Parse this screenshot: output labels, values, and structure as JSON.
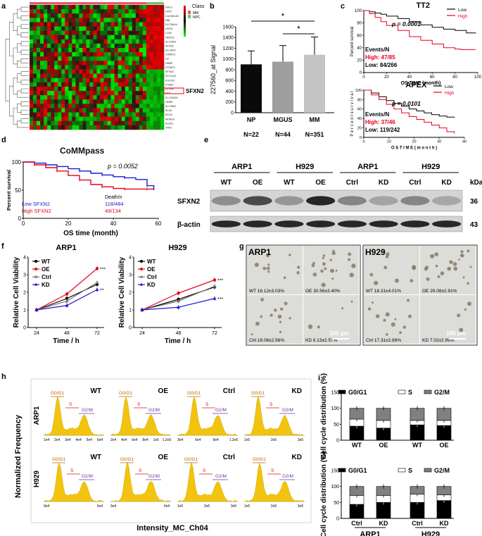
{
  "panel_labels": {
    "a": "a",
    "b": "b",
    "c": "c",
    "d": "d",
    "e": "e",
    "f": "f",
    "g": "g",
    "h": "h",
    "i": "i"
  },
  "panel_a": {
    "legend_title": "Class",
    "legend_items": [
      {
        "label": "MM",
        "color": "#e8566a"
      },
      {
        "label": "NPC",
        "color": "#63c86b"
      }
    ],
    "highlight_gene": "SFXN2",
    "gene_labels": [
      "HIF1a",
      "LRP2",
      "CACNA1AC",
      "MBL",
      "SLC39A14",
      "UROD",
      "LCN2",
      "HMOX1",
      "SLC40A1",
      "SFXN3",
      "SLC40A7",
      "CAMK12",
      "CP",
      "HAMP",
      "STEAP3",
      "SFXN2",
      "SLC11A2",
      "FLVCR1",
      "FXEB3",
      "SFXN4",
      "MT1",
      "SLC25A28",
      "HMBS",
      "SLC48A1",
      "ALAD",
      "ISCA1",
      "MON1A",
      "ALAS1",
      "TFRC"
    ]
  },
  "panel_b": {
    "chart_data": {
      "type": "bar",
      "ylabel": "227560_at Signal",
      "ylim": [
        0,
        1600
      ],
      "yticks": [
        0,
        200,
        400,
        600,
        800,
        1000,
        1200,
        1400,
        1600
      ],
      "categories": [
        "NP",
        "MGUS",
        "MM"
      ],
      "values": [
        900,
        950,
        1080
      ],
      "errors": [
        250,
        300,
        330
      ],
      "colors": [
        "#0a0a0a",
        "#9e9e9e",
        "#c4c4c4"
      ],
      "n_labels": [
        "N=22",
        "N=44",
        "N=351"
      ],
      "significance": [
        "*",
        "*"
      ]
    }
  },
  "panel_c1": {
    "chart_data": {
      "type": "line",
      "title": "TT2",
      "xlabel": "OS TIME (month)",
      "ylabel": "Percent survival",
      "xlim": [
        0,
        100
      ],
      "ylim": [
        0,
        100
      ],
      "xticks": [
        0,
        20,
        40,
        60,
        80,
        100
      ],
      "yticks": [
        0,
        20,
        40,
        60,
        80,
        100
      ],
      "series": [
        {
          "name": "Low",
          "color": "#000000",
          "x": [
            0,
            5,
            10,
            15,
            20,
            30,
            40,
            50,
            60,
            70,
            80,
            90,
            98
          ],
          "y": [
            100,
            98,
            96,
            94,
            91,
            87,
            82,
            77,
            73,
            70,
            68,
            64,
            63
          ]
        },
        {
          "name": "High",
          "color": "#e8001c",
          "x": [
            0,
            5,
            10,
            15,
            20,
            30,
            40,
            50,
            60,
            70,
            80,
            85,
            98
          ],
          "y": [
            100,
            95,
            89,
            82,
            76,
            68,
            58,
            52,
            46,
            40,
            38,
            37,
            37
          ]
        }
      ],
      "pvalue": "p = 0.0001",
      "events_header": "Events/N",
      "events_high": "High: 47/85",
      "events_low": "Low: 84/266"
    }
  },
  "panel_c2": {
    "chart_data": {
      "type": "line",
      "title": "APEX",
      "xlabel": "O S  T I M E  ( m o n t h )",
      "ylabel": "P e r c e n t  s u r v i v a l",
      "xlim": [
        0,
        40
      ],
      "ylim": [
        0,
        100
      ],
      "xticks": [
        0,
        10,
        20,
        30,
        40
      ],
      "yticks": [
        0,
        20,
        40,
        60,
        80,
        100
      ],
      "series": [
        {
          "name": "Low",
          "color": "#000000",
          "x": [
            0,
            3,
            6,
            9,
            12,
            15,
            18,
            21,
            24,
            27,
            30,
            33,
            36
          ],
          "y": [
            100,
            94,
            86,
            78,
            72,
            66,
            60,
            56,
            52,
            48,
            45,
            43,
            42
          ]
        },
        {
          "name": "High",
          "color": "#e8001c",
          "x": [
            0,
            3,
            6,
            9,
            12,
            15,
            18,
            21,
            24,
            27,
            30,
            33,
            36
          ],
          "y": [
            100,
            90,
            80,
            70,
            60,
            52,
            44,
            38,
            32,
            26,
            20,
            12,
            8
          ]
        }
      ],
      "pvalue": "p = 0.0101",
      "events_header": "Events/N",
      "events_high": "High: 37/46",
      "events_low": "Low: 119/242"
    }
  },
  "panel_d": {
    "chart_data": {
      "type": "line",
      "title": "CoMMpass",
      "xlabel": "OS time (month)",
      "ylabel": "Percent survival",
      "xlim": [
        0,
        60
      ],
      "ylim": [
        0,
        100
      ],
      "xticks": [
        0,
        20,
        40,
        60
      ],
      "yticks": [
        0,
        50,
        100
      ],
      "series": [
        {
          "name": "Low SFXN2",
          "color": "#1a1ad6",
          "x": [
            0,
            5,
            10,
            15,
            20,
            25,
            30,
            35,
            40,
            45,
            50,
            55,
            58
          ],
          "y": [
            100,
            98,
            95,
            92,
            88,
            84,
            80,
            77,
            74,
            72,
            69,
            58,
            50
          ]
        },
        {
          "name": "High SFXN2",
          "color": "#e8001c",
          "x": [
            0,
            5,
            10,
            15,
            20,
            25,
            30,
            35,
            40,
            45,
            50,
            55,
            58
          ],
          "y": [
            100,
            95,
            90,
            84,
            76,
            68,
            60,
            56,
            53,
            52,
            52,
            52,
            52
          ]
        }
      ],
      "pvalue": "p = 0.0052",
      "death_header": "Death/n",
      "low_label": "Low SFXN2",
      "low_value": "118/484",
      "high_label": "High SFXN2",
      "high_value": "49/134"
    }
  },
  "panel_e": {
    "groups": [
      "ARP1",
      "H929",
      "ARP1",
      "H929"
    ],
    "lanes": [
      "WT",
      "OE",
      "WT",
      "OE",
      "Ctrl",
      "KD",
      "Ctrl",
      "KD"
    ],
    "unit": "kDa",
    "rows": [
      {
        "label": "SFXN2",
        "kda": "36",
        "intensity": [
          0.35,
          0.75,
          0.3,
          0.95,
          0.4,
          0.22,
          0.4,
          0.2
        ]
      },
      {
        "label": "β-actin",
        "kda": "43",
        "intensity": [
          0.95,
          0.95,
          0.95,
          0.95,
          0.95,
          0.95,
          0.95,
          0.95
        ]
      }
    ]
  },
  "panel_f1": {
    "chart_data": {
      "type": "line",
      "title": "ARP1",
      "xlabel": "Time / h",
      "ylabel": "Relative Cell Viability",
      "categories": [
        "24",
        "48",
        "72"
      ],
      "ylim": [
        0,
        4
      ],
      "yticks": [
        0,
        1,
        2,
        3,
        4
      ],
      "series": [
        {
          "name": "WT",
          "color": "#000000",
          "marker": "circle",
          "values": [
            1.0,
            1.65,
            2.45
          ],
          "sig": ""
        },
        {
          "name": "OE",
          "color": "#e8001c",
          "marker": "circle",
          "values": [
            1.0,
            1.9,
            3.35
          ],
          "sig": "***"
        },
        {
          "name": "Ctrl",
          "color": "#777777",
          "marker": "triangle",
          "values": [
            1.0,
            1.5,
            2.55
          ],
          "sig": ""
        },
        {
          "name": "KD",
          "color": "#1a1ad6",
          "marker": "triangle",
          "values": [
            1.0,
            1.25,
            2.15
          ],
          "sig": "**"
        }
      ]
    }
  },
  "panel_f2": {
    "chart_data": {
      "type": "line",
      "title": "H929",
      "xlabel": "Time / h",
      "ylabel": "Relative Cell Viability",
      "categories": [
        "24",
        "48",
        "72"
      ],
      "ylim": [
        0,
        4
      ],
      "yticks": [
        0,
        1,
        2,
        3,
        4
      ],
      "series": [
        {
          "name": "WT",
          "color": "#000000",
          "marker": "circle",
          "values": [
            1.0,
            1.6,
            2.3
          ],
          "sig": ""
        },
        {
          "name": "OE",
          "color": "#e8001c",
          "marker": "circle",
          "values": [
            1.0,
            1.95,
            2.7
          ],
          "sig": "***"
        },
        {
          "name": "Ctrl",
          "color": "#777777",
          "marker": "triangle",
          "values": [
            1.0,
            1.5,
            2.35
          ],
          "sig": ""
        },
        {
          "name": "KD",
          "color": "#1a1ad6",
          "marker": "triangle",
          "values": [
            1.0,
            1.15,
            1.65
          ],
          "sig": "***"
        }
      ]
    }
  },
  "panel_g": {
    "cells": [
      "ARP1",
      "H929"
    ],
    "scale": "100 μm",
    "tiles": [
      {
        "label": "WT 16.12±3.03%"
      },
      {
        "label": "OE 30.56±3.40%"
      },
      {
        "label": "Ctrl 18.06±2.56%"
      },
      {
        "label": "KD 6.13±2.57%"
      },
      {
        "label": "WT 18.31±4.01%"
      },
      {
        "label": "OE 29.08±2.91%"
      },
      {
        "label": "Ctrl 17.31±2.89%"
      },
      {
        "label": "KD 7.02±2.99%"
      }
    ]
  },
  "panel_h": {
    "ylabel": "Normalized Frequency",
    "xlabel": "Intensity_MC_Ch04",
    "row_labels": [
      "ARP1",
      "H929"
    ],
    "phase_labels": [
      "G0/G1",
      "S",
      "G2/M"
    ],
    "histograms": [
      {
        "title": "WT",
        "ticks": [
          "1e4",
          "2e4",
          "3e4",
          "4e4",
          "5e4",
          "6e4"
        ]
      },
      {
        "title": "OE",
        "ticks": [
          "2e4",
          "4e4",
          "6e4",
          "8e4",
          "1e5",
          "1.2e5"
        ]
      },
      {
        "title": "Ctrl",
        "ticks": [
          "3e4",
          "6e4",
          "9e4",
          "1.2e5"
        ]
      },
      {
        "title": "KD",
        "ticks": [
          "1e5",
          "2e5",
          "3e5"
        ]
      },
      {
        "title": "WT",
        "ticks": [
          "3e4",
          "6e4"
        ]
      },
      {
        "title": "OE",
        "ticks": [
          "3e4",
          "6e4"
        ]
      },
      {
        "title": "Ctrl",
        "ticks": [
          "1e5",
          "2e5",
          "3e5"
        ]
      },
      {
        "title": "KD",
        "ticks": [
          "1e5",
          "2e5",
          "3e5"
        ]
      }
    ]
  },
  "panel_i1": {
    "chart_data": {
      "type": "bar",
      "stacked": true,
      "ylabel": "Cell cycle distribution (%)",
      "ylim": [
        0,
        150
      ],
      "yticks": [
        0,
        50,
        100,
        150
      ],
      "legend": [
        "G0/G1",
        "S",
        "G2/M"
      ],
      "colors": [
        "#000000",
        "#ffffff",
        "#808080"
      ],
      "categories": [
        "WT",
        "OE",
        "WT",
        "OE"
      ],
      "series": [
        {
          "name": "G0/G1",
          "values": [
            44,
            38,
            48,
            46
          ]
        },
        {
          "name": "S",
          "values": [
            22,
            24,
            14,
            16
          ]
        },
        {
          "name": "G2/M",
          "values": [
            34,
            38,
            38,
            38
          ]
        }
      ]
    }
  },
  "panel_i2": {
    "chart_data": {
      "type": "bar",
      "stacked": true,
      "ylabel": "Cell cycle distribution (%)",
      "ylim": [
        0,
        150
      ],
      "yticks": [
        0,
        50,
        100,
        150
      ],
      "legend": [
        "G0/G1",
        "S",
        "G2/M"
      ],
      "colors": [
        "#000000",
        "#ffffff",
        "#808080"
      ],
      "categories": [
        "Ctrl",
        "KD",
        "Ctrl",
        "KD"
      ],
      "groups": [
        "ARP1",
        "H929"
      ],
      "series": [
        {
          "name": "G0/G1",
          "values": [
            44,
            50,
            50,
            56
          ]
        },
        {
          "name": "S",
          "values": [
            28,
            22,
            26,
            18
          ]
        },
        {
          "name": "G2/M",
          "values": [
            28,
            28,
            24,
            26
          ]
        }
      ]
    }
  }
}
